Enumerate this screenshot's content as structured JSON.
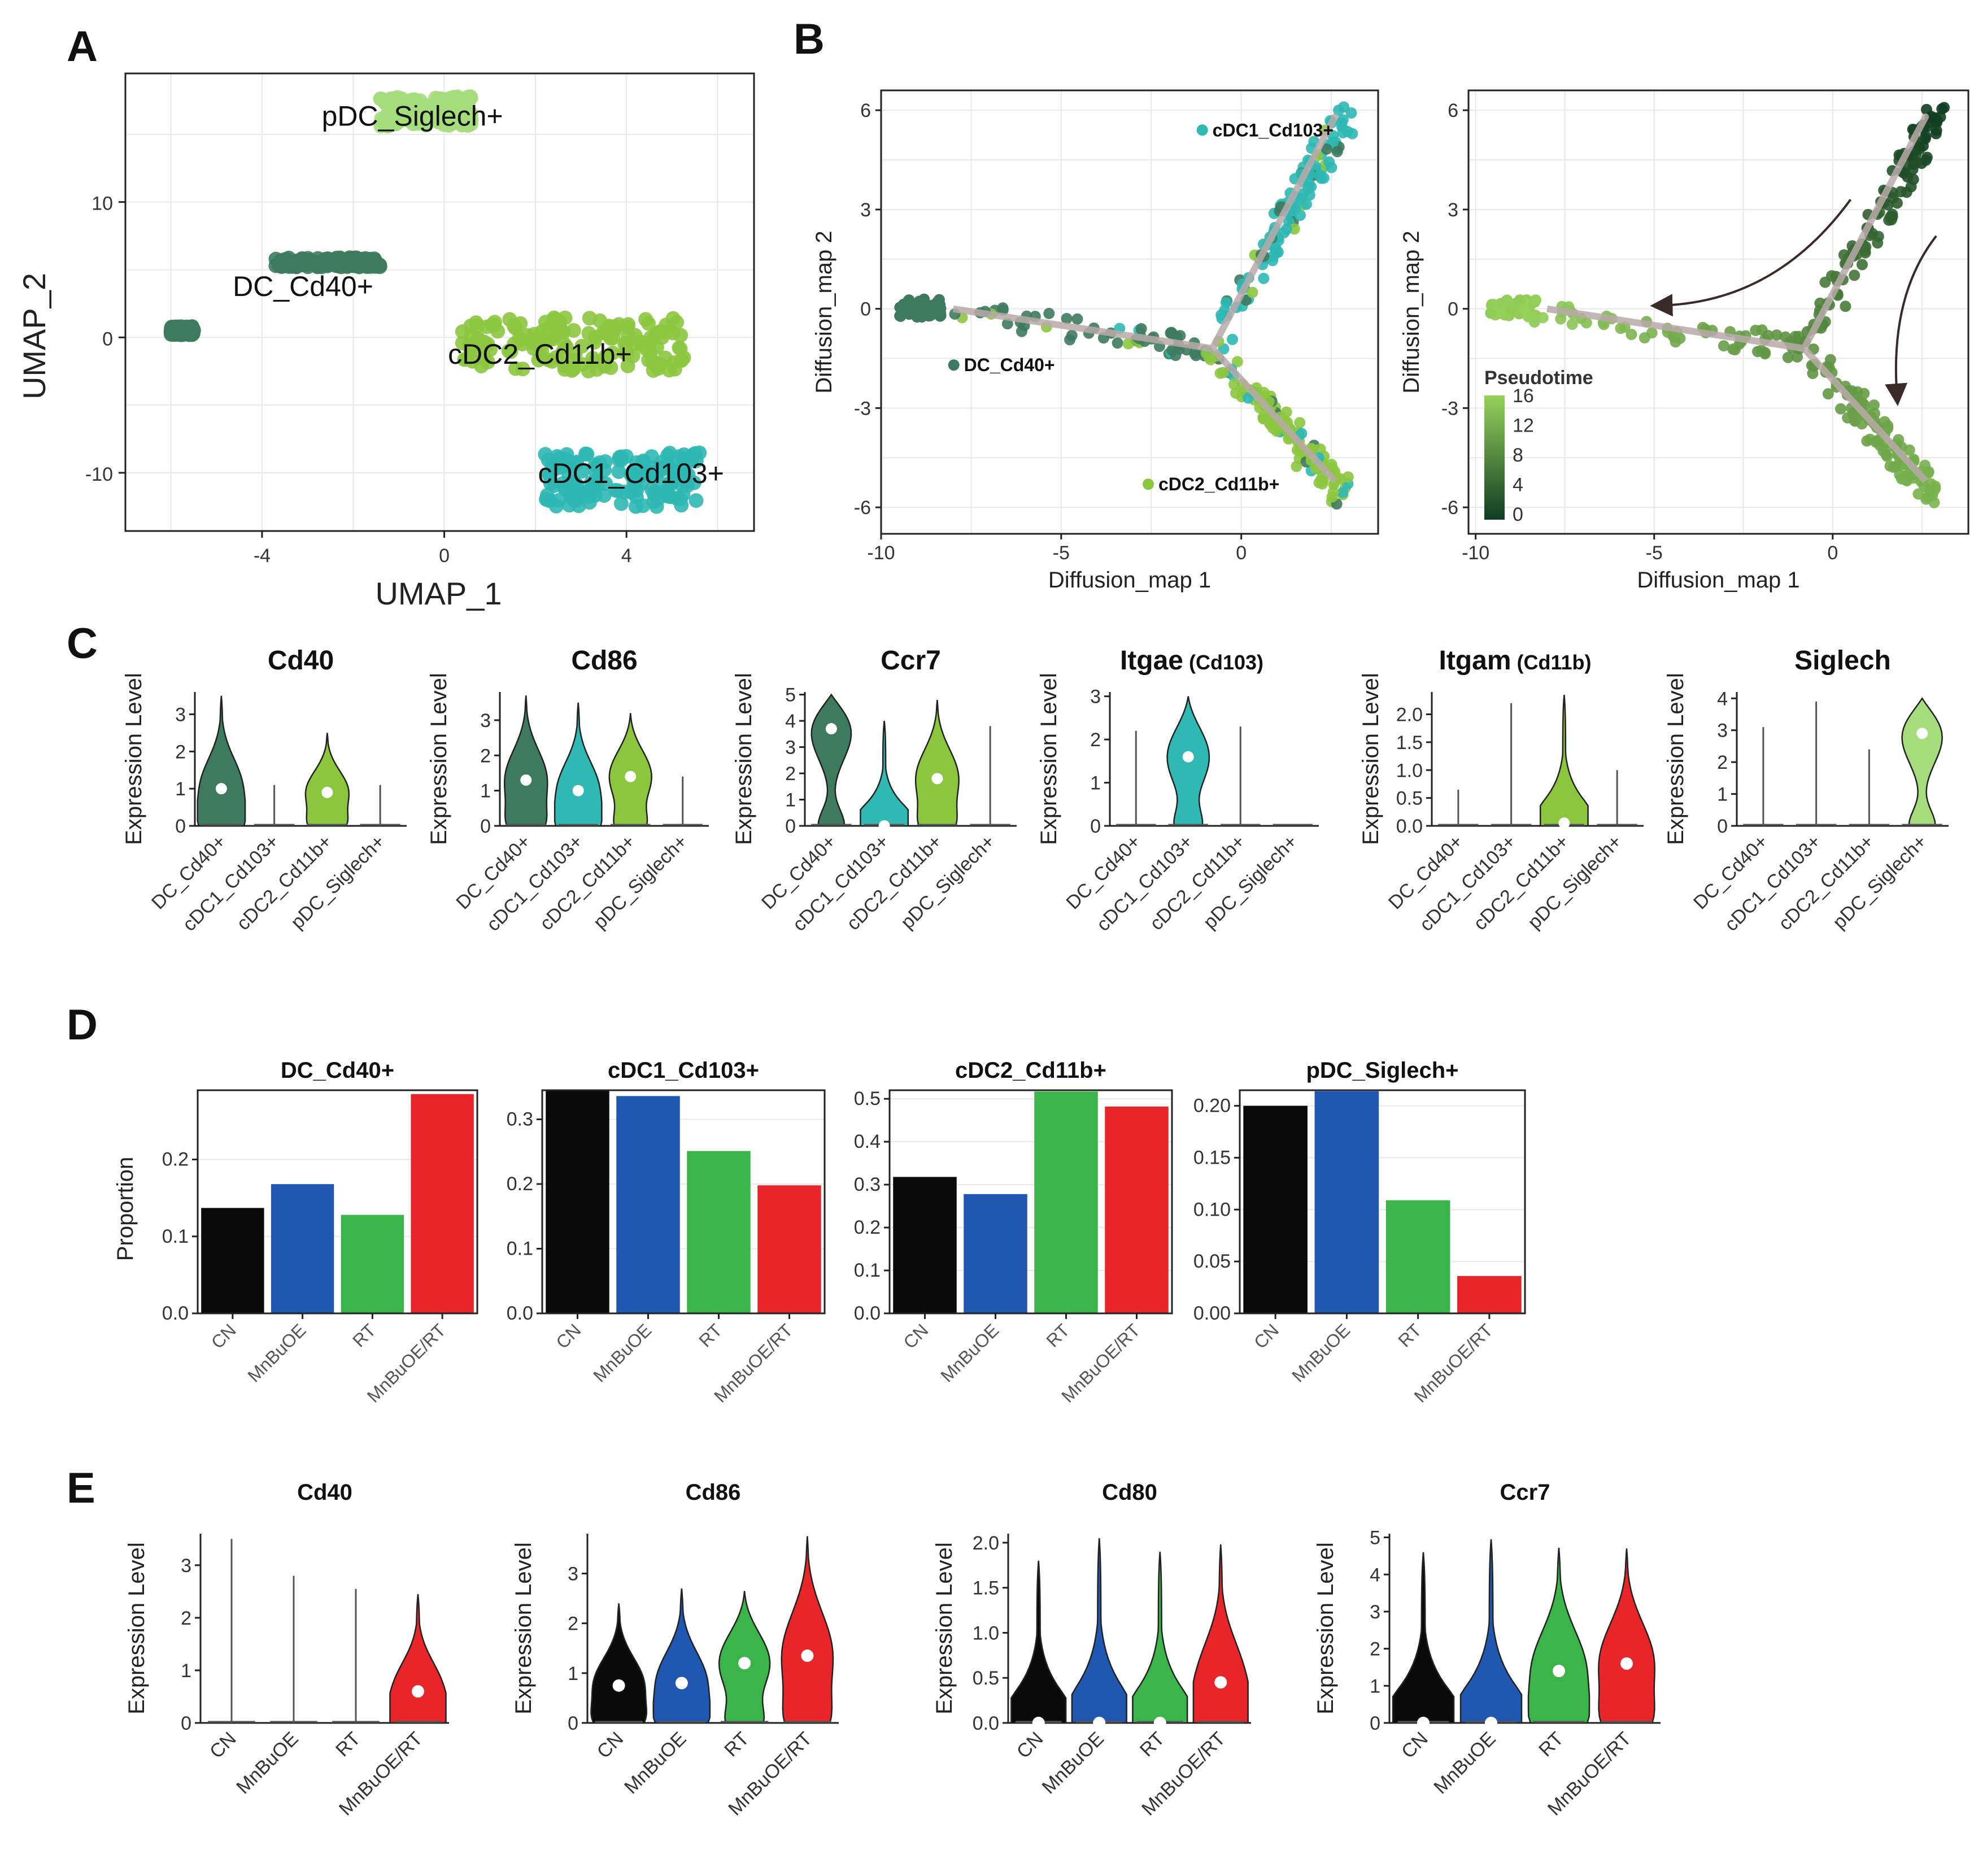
{
  "panel_labels": [
    "A",
    "B",
    "C",
    "D",
    "E"
  ],
  "colors": {
    "DC_Cd40+": "#3d7a5e",
    "cDC1_Cd103+": "#2fb8b4",
    "cDC2_Cd11b+": "#8cc63f",
    "pDC_Siglech+": "#a5dc7c",
    "CN": "#0a0a0a",
    "MnBuOE": "#2057b0",
    "RT": "#3bb54a",
    "MnBuOE/RT": "#e8262a"
  },
  "chart_data": [
    {
      "id": "A",
      "type": "scatter",
      "title": "",
      "xlabel": "UMAP_1",
      "ylabel": "UMAP_2",
      "xlim": [
        -7,
        6.8
      ],
      "ylim": [
        -14.3,
        19.5
      ],
      "xticks": [
        -4,
        0,
        4
      ],
      "yticks": [
        -10,
        0,
        10
      ],
      "clusters": [
        {
          "name": "pDC_Siglech+",
          "label": "pDC_Siglech+",
          "color": "#a5dc7c",
          "x_range": [
            -1.4,
            0.6
          ],
          "y_range": [
            15.6,
            17.8
          ]
        },
        {
          "name": "DC_Cd40+",
          "label": "DC_Cd40+",
          "color": "#3d7a5e",
          "x_range": [
            -3.7,
            -1.4
          ],
          "y_range": [
            5.2,
            5.9
          ]
        },
        {
          "name": "DC_Cd40+",
          "label": "",
          "color": "#3d7a5e",
          "x_range": [
            -6.0,
            -5.5
          ],
          "y_range": [
            0.2,
            0.8
          ]
        },
        {
          "name": "cDC2_Cd11b+",
          "label": "cDC2_Cd11b+",
          "color": "#8cc63f",
          "x_range": [
            0.4,
            5.3
          ],
          "y_range": [
            -2.5,
            1.5
          ]
        },
        {
          "name": "cDC1_Cd103+",
          "label": "cDC1_Cd103+",
          "color": "#2fb8b4",
          "x_range": [
            2.2,
            5.6
          ],
          "y_range": [
            -12.5,
            -8.5
          ]
        }
      ]
    },
    {
      "id": "B-left",
      "type": "scatter",
      "xlabel": "Diffusion_map 1",
      "ylabel": "Diffusion_map 2",
      "xlim": [
        -10,
        3.8
      ],
      "ylim": [
        -6.8,
        6.6
      ],
      "xticks": [
        -10,
        -5,
        0
      ],
      "yticks": [
        -6,
        -3,
        0,
        3,
        6
      ],
      "legend_labels": [
        "cDC1_Cd103+",
        "DC_Cd40+",
        "cDC2_Cd11b+"
      ],
      "trajectory": [
        [
          -8,
          0
        ],
        [
          -0.8,
          -1.2
        ],
        [
          2.6,
          5.8
        ],
        [
          -0.8,
          -1.2
        ],
        [
          2.6,
          -5.2
        ]
      ]
    },
    {
      "id": "B-right",
      "type": "scatter",
      "xlabel": "Diffusion_map 1",
      "ylabel": "Diffusion_map 2",
      "xlim": [
        -10.2,
        3.8
      ],
      "ylim": [
        -6.8,
        6.6
      ],
      "xticks": [
        -10,
        -5,
        0
      ],
      "yticks": [
        -6,
        -3,
        0,
        3,
        6
      ],
      "colorbar_title": "Pseudotime",
      "colorbar_ticks": [
        "16",
        "12",
        "8",
        "4",
        "0"
      ],
      "colorbar_range": [
        0,
        16
      ]
    },
    {
      "id": "C",
      "type": "violin",
      "ylabel": "Expression Level",
      "categories": [
        "DC_Cd40+",
        "cDC1_Cd103+",
        "cDC2_Cd11b+",
        "pDC_Siglech+"
      ],
      "plots": [
        {
          "gene": "Cd40",
          "suffix": "",
          "ylim": [
            0,
            3.6
          ],
          "yticks": [
            "0",
            "1",
            "2",
            "3"
          ],
          "ytick_vals": [
            0,
            1,
            2,
            3
          ],
          "max": [
            3.5,
            1.1,
            2.5,
            1.1
          ],
          "median": [
            1.0,
            null,
            0.9,
            null
          ],
          "violin": [
            true,
            false,
            true,
            false
          ]
        },
        {
          "gene": "Cd86",
          "suffix": "",
          "ylim": [
            0,
            3.8
          ],
          "yticks": [
            "0",
            "1",
            "2",
            "3"
          ],
          "ytick_vals": [
            0,
            1,
            2,
            3
          ],
          "max": [
            3.7,
            3.5,
            3.2,
            1.4
          ],
          "median": [
            1.3,
            1.0,
            1.4,
            null
          ],
          "violin": [
            true,
            true,
            true,
            false
          ]
        },
        {
          "gene": "Ccr7",
          "suffix": "",
          "ylim": [
            0,
            5.1
          ],
          "yticks": [
            "0",
            "1",
            "2",
            "3",
            "4",
            "5"
          ],
          "ytick_vals": [
            0,
            1,
            2,
            3,
            4,
            5
          ],
          "max": [
            5.0,
            4.0,
            4.8,
            3.8
          ],
          "median": [
            3.7,
            0.0,
            1.8,
            null
          ],
          "violin": [
            true,
            true,
            true,
            false
          ]
        },
        {
          "gene": "Itgae",
          "suffix": " (Cd103)",
          "ylim": [
            0,
            3.1
          ],
          "yticks": [
            "0",
            "1",
            "2",
            "3"
          ],
          "ytick_vals": [
            0,
            1,
            2,
            3
          ],
          "max": [
            2.2,
            3.0,
            2.3,
            0
          ],
          "median": [
            null,
            1.6,
            null,
            null
          ],
          "violin": [
            false,
            true,
            false,
            false
          ]
        },
        {
          "gene": "Itgam",
          "suffix": " (Cd11b)",
          "ylim": [
            0,
            2.4
          ],
          "yticks": [
            "0.0",
            "0.5",
            "1.0",
            "1.5",
            "2.0"
          ],
          "ytick_vals": [
            0,
            0.5,
            1,
            1.5,
            2
          ],
          "max": [
            0.65,
            2.2,
            2.35,
            1.0
          ],
          "median": [
            null,
            null,
            0.05,
            null
          ],
          "violin": [
            false,
            false,
            true,
            false
          ]
        },
        {
          "gene": "Siglech",
          "suffix": "",
          "ylim": [
            0,
            4.2
          ],
          "yticks": [
            "0",
            "1",
            "2",
            "3",
            "4"
          ],
          "ytick_vals": [
            0,
            1,
            2,
            3,
            4
          ],
          "max": [
            3.1,
            3.9,
            2.4,
            4.0
          ],
          "median": [
            null,
            null,
            null,
            2.9
          ],
          "violin": [
            false,
            false,
            false,
            true
          ]
        }
      ]
    },
    {
      "id": "D",
      "type": "bar",
      "ylabel": "Proportion",
      "categories": [
        "CN",
        "MnBuOE",
        "RT",
        "MnBuOE/RT"
      ],
      "plots": [
        {
          "title": "DC_Cd40+",
          "values": [
            0.137,
            0.168,
            0.128,
            0.285
          ],
          "ylim": [
            0,
            0.29
          ],
          "yticks": [
            "0.0",
            "0.1",
            "0.2"
          ],
          "ytick_vals": [
            0,
            0.1,
            0.2
          ]
        },
        {
          "title": "cDC1_Cd103+",
          "values": [
            0.344,
            0.336,
            0.251,
            0.198
          ],
          "ylim": [
            0,
            0.345
          ],
          "yticks": [
            "0.0",
            "0.1",
            "0.2",
            "0.3"
          ],
          "ytick_vals": [
            0,
            0.1,
            0.2,
            0.3
          ]
        },
        {
          "title": "cDC2_Cd11b+",
          "values": [
            0.318,
            0.278,
            0.517,
            0.482
          ],
          "ylim": [
            0,
            0.52
          ],
          "yticks": [
            "0.0",
            "0.1",
            "0.2",
            "0.3",
            "0.4",
            "0.5"
          ],
          "ytick_vals": [
            0,
            0.1,
            0.2,
            0.3,
            0.4,
            0.5
          ]
        },
        {
          "title": "pDC_Siglech+",
          "values": [
            0.2,
            0.214,
            0.109,
            0.036
          ],
          "ylim": [
            0,
            0.215
          ],
          "yticks": [
            "0.00",
            "0.05",
            "0.10",
            "0.15",
            "0.20"
          ],
          "ytick_vals": [
            0,
            0.05,
            0.1,
            0.15,
            0.2
          ]
        }
      ]
    },
    {
      "id": "E",
      "type": "violin",
      "ylabel": "Expression Level",
      "categories": [
        "CN",
        "MnBuOE",
        "RT",
        "MnBuOE/RT"
      ],
      "plots": [
        {
          "gene": "Cd40",
          "ylim": [
            0,
            3.6
          ],
          "yticks": [
            "0",
            "1",
            "2",
            "3"
          ],
          "ytick_vals": [
            0,
            1,
            2,
            3
          ],
          "max": [
            3.5,
            2.8,
            2.55,
            2.45
          ],
          "median": [
            null,
            null,
            null,
            0.6
          ],
          "violin": [
            false,
            false,
            false,
            true
          ]
        },
        {
          "gene": "Cd86",
          "ylim": [
            0,
            3.8
          ],
          "yticks": [
            "0",
            "1",
            "2",
            "3"
          ],
          "ytick_vals": [
            0,
            1,
            2,
            3
          ],
          "max": [
            2.4,
            2.7,
            2.65,
            3.75
          ],
          "median": [
            0.75,
            0.8,
            1.2,
            1.35
          ],
          "violin": [
            true,
            true,
            true,
            true
          ]
        },
        {
          "gene": "Cd80",
          "ylim": [
            0,
            2.1
          ],
          "yticks": [
            "0.0",
            "0.5",
            "1.0",
            "1.5",
            "2.0"
          ],
          "ytick_vals": [
            0,
            0.5,
            1,
            1.5,
            2
          ],
          "max": [
            1.8,
            2.05,
            1.9,
            1.98
          ],
          "median": [
            0.0,
            0.0,
            0.0,
            0.45
          ],
          "violin": [
            true,
            true,
            true,
            true
          ]
        },
        {
          "gene": "Ccr7",
          "ylim": [
            0,
            5.1
          ],
          "yticks": [
            "0",
            "1",
            "2",
            "3",
            "4",
            "5"
          ],
          "ytick_vals": [
            0,
            1,
            2,
            3,
            4,
            5
          ],
          "max": [
            4.6,
            4.95,
            4.72,
            4.7
          ],
          "median": [
            0.0,
            0.0,
            1.4,
            1.6
          ],
          "violin": [
            true,
            true,
            true,
            true
          ]
        }
      ]
    }
  ]
}
